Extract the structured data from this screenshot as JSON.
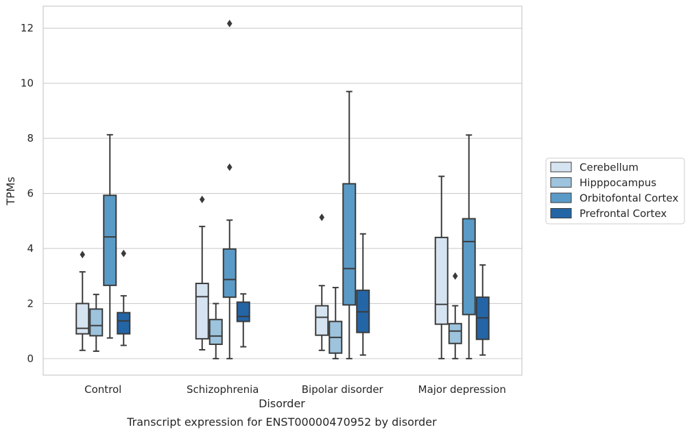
{
  "chart_data": {
    "type": "box",
    "xlabel": "Disorder",
    "ylabel": "TPMs",
    "caption": "Transcript expression for ENST00000470952 by disorder",
    "ylim": [
      -0.6,
      12.8
    ],
    "yticks": [
      0,
      2,
      4,
      6,
      8,
      10,
      12
    ],
    "grid": "horizontal",
    "legend_position": "right",
    "categories": [
      "Control",
      "Schizophrenia",
      "Bipolar disorder",
      "Major depression"
    ],
    "series": [
      {
        "name": "Cerebellum",
        "color": "#d6e4f1",
        "boxes": [
          {
            "whislo": 0.3,
            "q1": 0.9,
            "med": 1.1,
            "q3": 2.0,
            "whishi": 3.15,
            "fliers": [
              3.78
            ]
          },
          {
            "whislo": 0.32,
            "q1": 0.72,
            "med": 2.25,
            "q3": 2.73,
            "whishi": 4.8,
            "fliers": [
              5.78
            ]
          },
          {
            "whislo": 0.3,
            "q1": 0.85,
            "med": 1.5,
            "q3": 1.92,
            "whishi": 2.65,
            "fliers": [
              5.13
            ]
          },
          {
            "whislo": 0.0,
            "q1": 1.25,
            "med": 1.97,
            "q3": 4.4,
            "whishi": 6.62,
            "fliers": []
          }
        ]
      },
      {
        "name": "Hipppocampus",
        "color": "#9dc3dd",
        "boxes": [
          {
            "whislo": 0.27,
            "q1": 0.83,
            "med": 1.2,
            "q3": 1.8,
            "whishi": 2.33,
            "fliers": []
          },
          {
            "whislo": 0.0,
            "q1": 0.52,
            "med": 0.82,
            "q3": 1.42,
            "whishi": 2.0,
            "fliers": []
          },
          {
            "whislo": 0.0,
            "q1": 0.2,
            "med": 0.77,
            "q3": 1.35,
            "whishi": 2.58,
            "fliers": []
          },
          {
            "whislo": 0.0,
            "q1": 0.55,
            "med": 1.0,
            "q3": 1.27,
            "whishi": 1.92,
            "fliers": [
              3.0
            ]
          }
        ]
      },
      {
        "name": "Orbitofontal Cortex",
        "color": "#5a9ac6",
        "boxes": [
          {
            "whislo": 0.75,
            "q1": 2.66,
            "med": 4.42,
            "q3": 5.93,
            "whishi": 8.13,
            "fliers": []
          },
          {
            "whislo": 0.0,
            "q1": 2.23,
            "med": 2.87,
            "q3": 3.98,
            "whishi": 5.03,
            "fliers": [
              6.95,
              12.17
            ]
          },
          {
            "whislo": 0.0,
            "q1": 1.95,
            "med": 3.27,
            "q3": 6.35,
            "whishi": 9.7,
            "fliers": []
          },
          {
            "whislo": 0.0,
            "q1": 1.6,
            "med": 4.25,
            "q3": 5.08,
            "whishi": 8.12,
            "fliers": []
          }
        ]
      },
      {
        "name": "Prefrontal Cortex",
        "color": "#2465a6",
        "boxes": [
          {
            "whislo": 0.48,
            "q1": 0.9,
            "med": 1.37,
            "q3": 1.67,
            "whishi": 2.28,
            "fliers": [
              3.82
            ]
          },
          {
            "whislo": 0.43,
            "q1": 1.35,
            "med": 1.53,
            "q3": 2.05,
            "whishi": 2.35,
            "fliers": []
          },
          {
            "whislo": 0.13,
            "q1": 0.95,
            "med": 1.7,
            "q3": 2.48,
            "whishi": 4.53,
            "fliers": []
          },
          {
            "whislo": 0.13,
            "q1": 0.7,
            "med": 1.48,
            "q3": 2.23,
            "whishi": 3.4,
            "fliers": []
          }
        ]
      }
    ]
  }
}
